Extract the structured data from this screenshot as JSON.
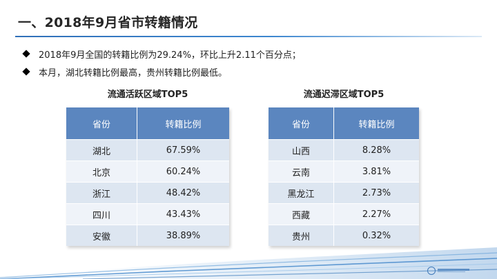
{
  "title": "一、2018年9月省市转籍情况",
  "bullets": [
    "2018年9月全国的转籍比例为29.24%，环比上升2.11个百分点；",
    "本月，湖北转籍比例最高，贵州转籍比例最低。"
  ],
  "tables": {
    "active": {
      "title": "流通活跃区域TOP5",
      "headers": [
        "省份",
        "转籍比例"
      ],
      "rows": [
        [
          "湖北",
          "67.59%"
        ],
        [
          "北京",
          "60.24%"
        ],
        [
          "浙江",
          "48.42%"
        ],
        [
          "四川",
          "43.43%"
        ],
        [
          "安徽",
          "38.89%"
        ]
      ]
    },
    "stagnant": {
      "title": "流通迟滞区域TOP5",
      "headers": [
        "省份",
        "转籍比例"
      ],
      "rows": [
        [
          "山西",
          "8.28%"
        ],
        [
          "云南",
          "3.81%"
        ],
        [
          "黑龙江",
          "2.73%"
        ],
        [
          "西藏",
          "2.27%"
        ],
        [
          "贵州",
          "0.32%"
        ]
      ]
    }
  },
  "colors": {
    "header_bg": "#5b86bf",
    "row_odd": "#dde6f1",
    "row_even": "#eff3f9",
    "accent": "#2f6fb8"
  }
}
